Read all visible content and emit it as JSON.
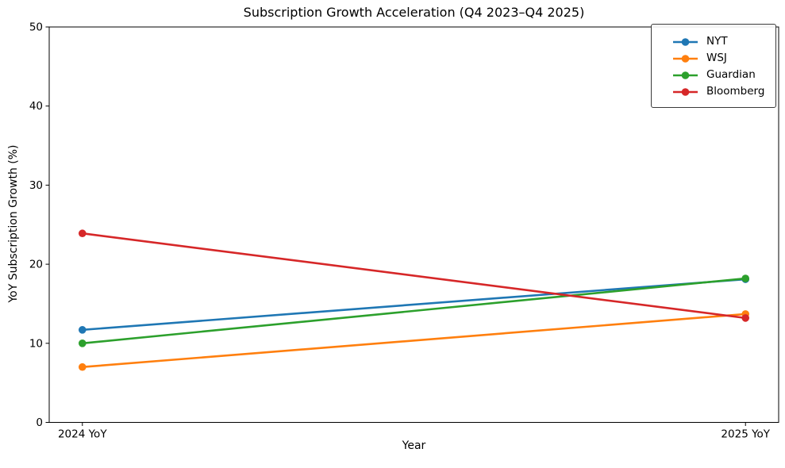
{
  "chart_data": {
    "type": "line",
    "title": "Subscription Growth Acceleration (Q4 2023–Q4 2025)",
    "xlabel": "Year",
    "ylabel": "YoY Subscription Growth (%)",
    "categories": [
      "2024 YoY",
      "2025 YoY"
    ],
    "yticks": [
      0,
      10,
      20,
      30,
      40,
      50
    ],
    "ylim": [
      0,
      50
    ],
    "grid": false,
    "legend_position": "upper right",
    "axis_color": "#000000",
    "series": [
      {
        "name": "NYT",
        "color": "#1f77b4",
        "values": [
          11.7,
          18.1
        ]
      },
      {
        "name": "WSJ",
        "color": "#ff7f0e",
        "values": [
          7.0,
          13.7
        ]
      },
      {
        "name": "Guardian",
        "color": "#2ca02c",
        "values": [
          10.0,
          18.2
        ]
      },
      {
        "name": "Bloomberg",
        "color": "#d62728",
        "values": [
          23.9,
          13.2
        ]
      }
    ]
  }
}
